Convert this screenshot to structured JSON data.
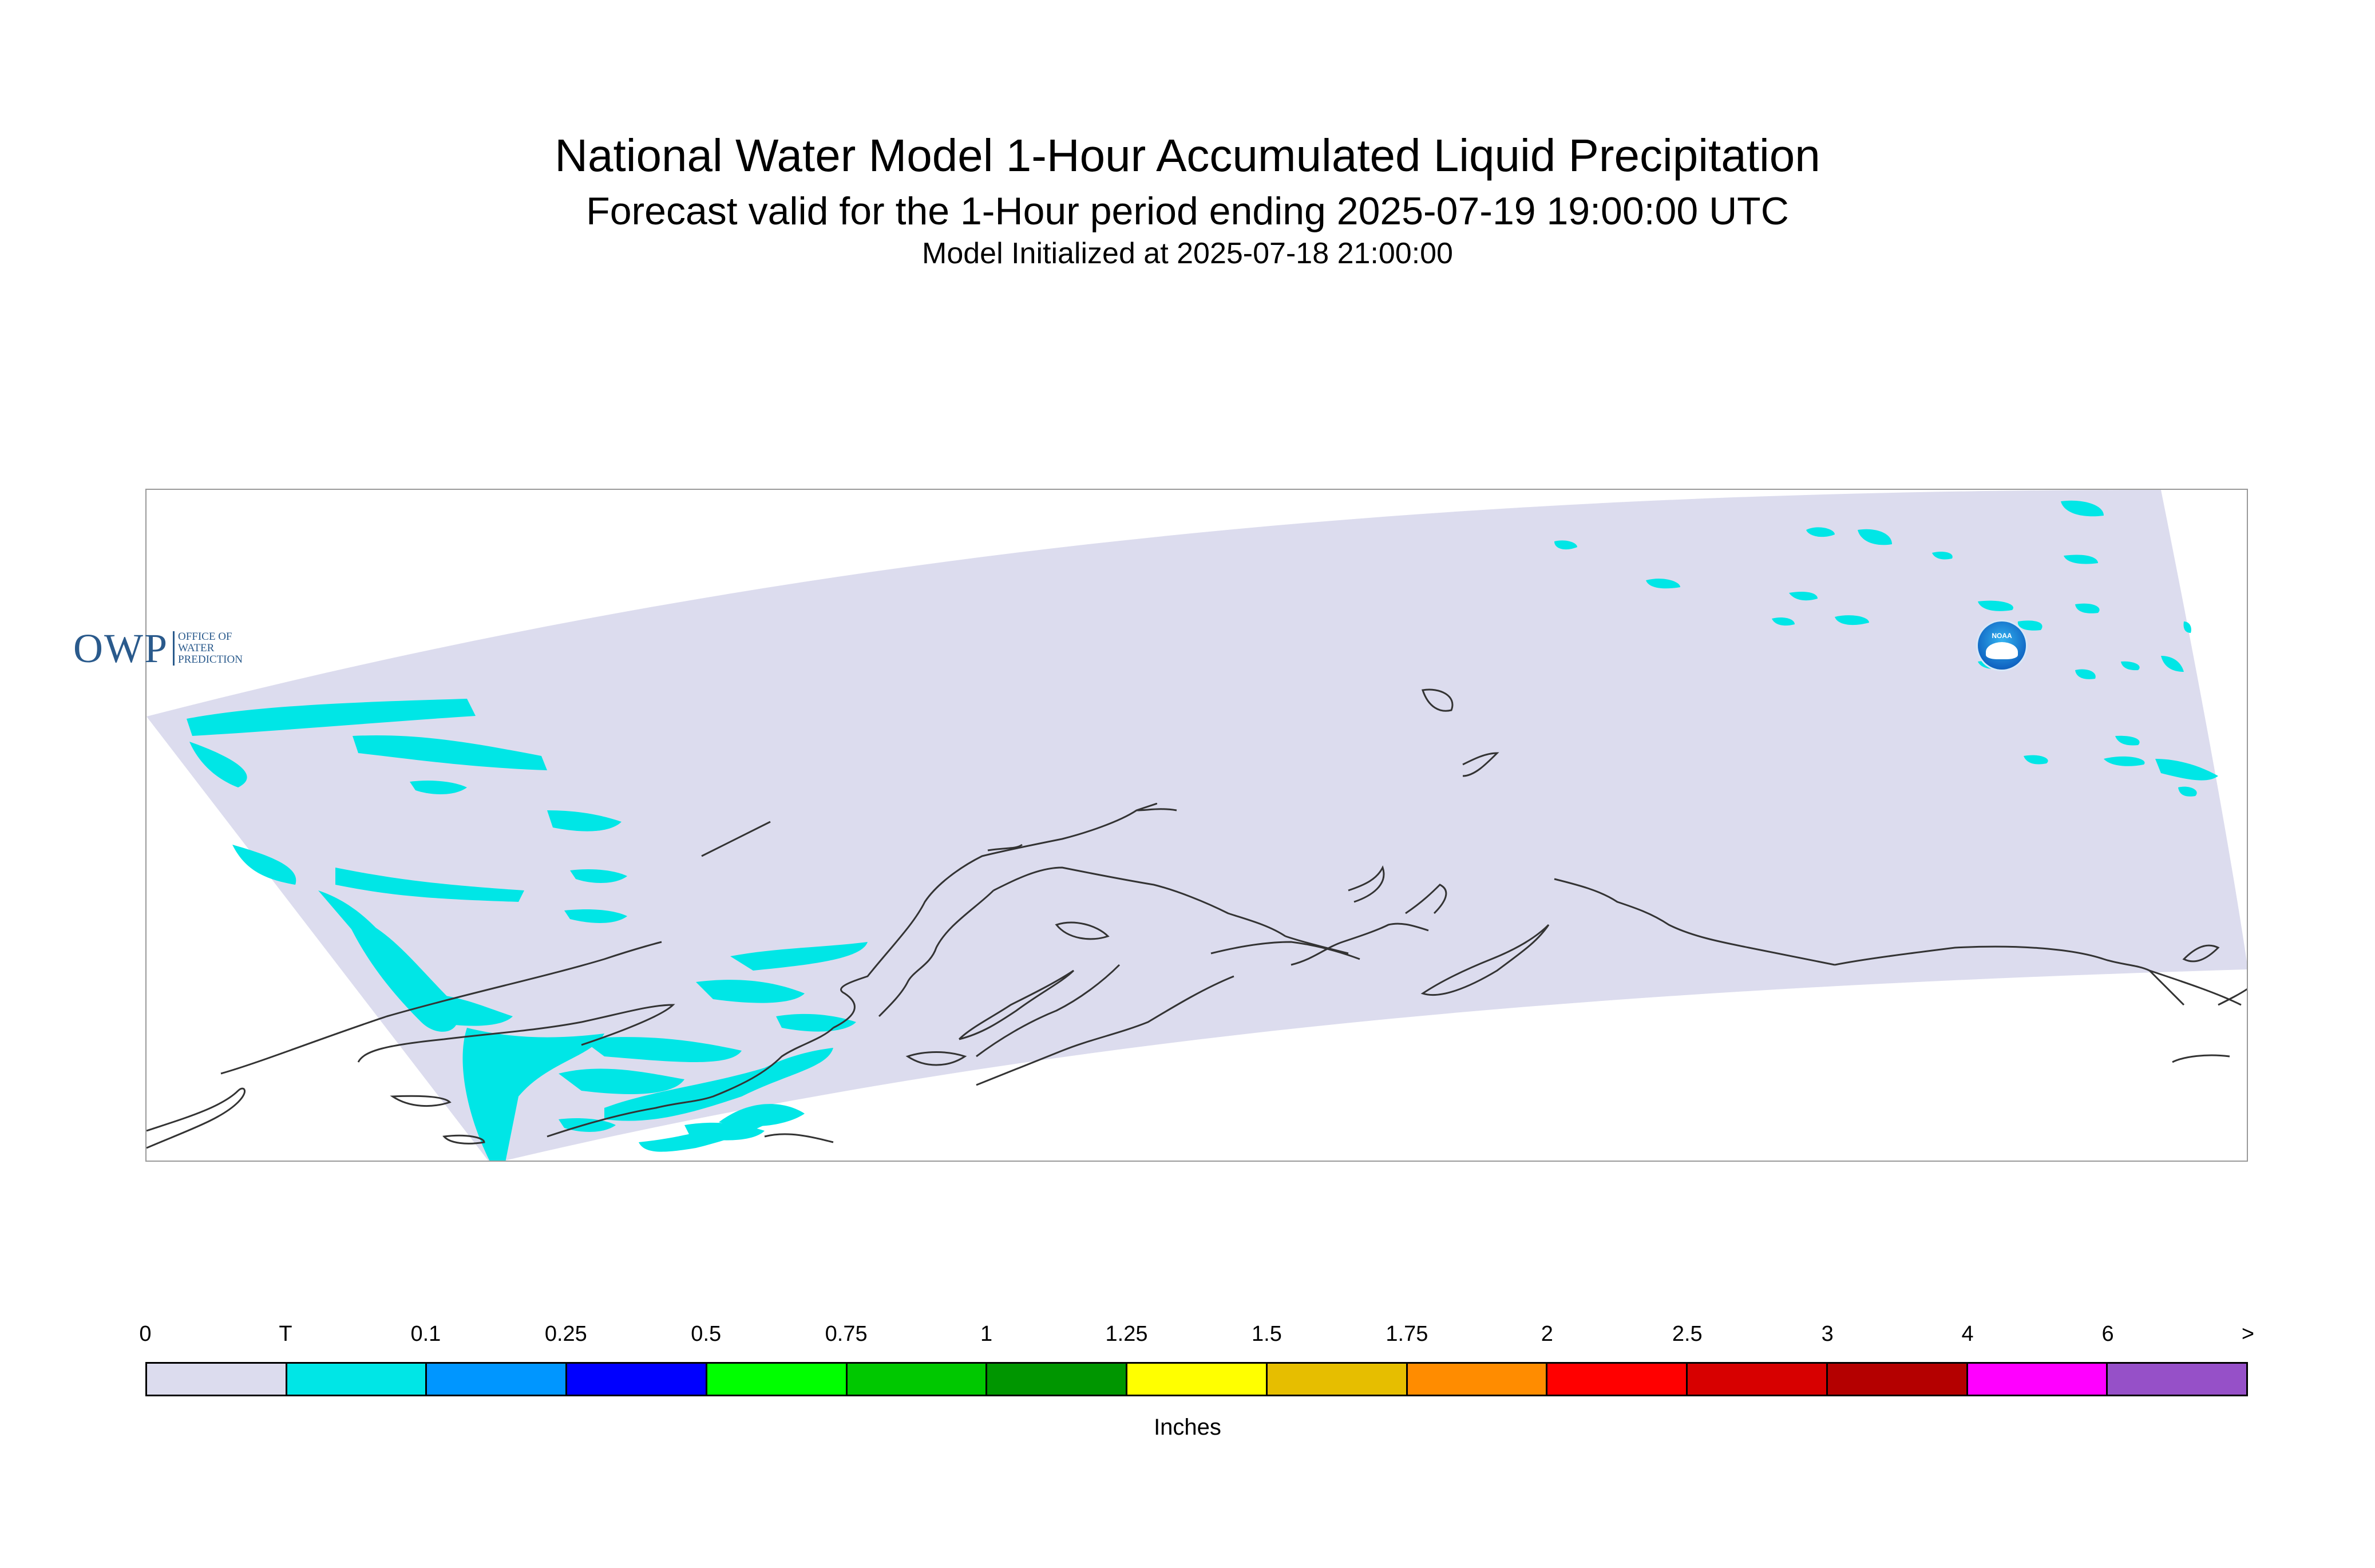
{
  "title": "National Water Model 1-Hour Accumulated Liquid Precipitation",
  "subtitle": "Forecast valid for the 1-Hour period ending 2025-07-19 19:00:00 UTC",
  "init_line": "Model Initialized at 2025-07-18 21:00:00",
  "map": {
    "domain_fill": "#dcdcee",
    "precip_color": "#00e6e6",
    "coastline_color": "#333333",
    "logos": {
      "owp_letters": "OWP",
      "owp_lines": [
        "OFFICE OF",
        "WATER",
        "PREDICTION"
      ],
      "noaa_text": "NOAA"
    }
  },
  "legend": {
    "ticks": [
      "0",
      "T",
      "0.1",
      "0.25",
      "0.5",
      "0.75",
      "1",
      "1.25",
      "1.5",
      "1.75",
      "2",
      "2.5",
      "3",
      "4",
      "6",
      ">"
    ],
    "colors": [
      "#dcdcee",
      "#00e6e6",
      "#0096ff",
      "#0000ff",
      "#00ff00",
      "#00c800",
      "#009600",
      "#ffff00",
      "#e6be00",
      "#ff8c00",
      "#ff0000",
      "#d70000",
      "#b40000",
      "#ff00ff",
      "#9650c8"
    ],
    "unit": "Inches"
  }
}
